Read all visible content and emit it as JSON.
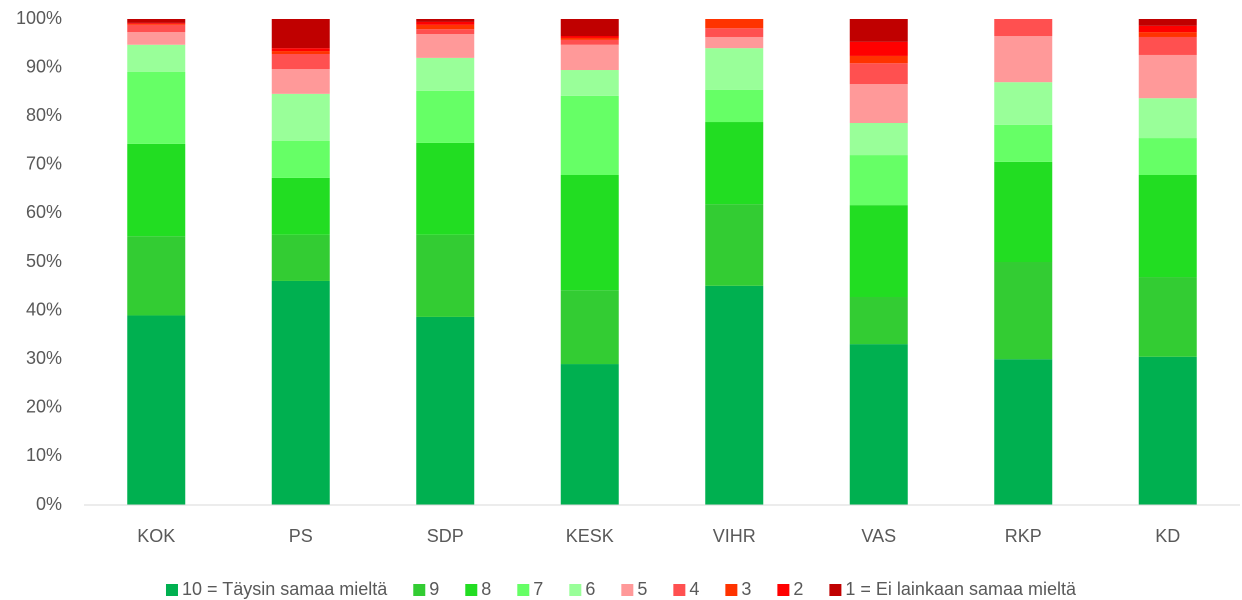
{
  "chart_data": {
    "type": "stacked_bar_100",
    "categories": [
      "KOK",
      "PS",
      "SDP",
      "KESK",
      "VIHR",
      "VAS",
      "RKP",
      "KD"
    ],
    "series": [
      {
        "name": "10 = Täysin samaa mieltä",
        "color": "#00b050",
        "values": [
          39.0,
          46.1,
          38.7,
          29.0,
          45.1,
          33.1,
          30.0,
          30.5
        ]
      },
      {
        "name": "9",
        "color": "#33cc33",
        "values": [
          16.3,
          9.5,
          16.9,
          15.2,
          16.8,
          9.7,
          20.0,
          16.4
        ]
      },
      {
        "name": "8",
        "color": "#22dd22",
        "values": [
          19.0,
          11.7,
          18.9,
          23.7,
          16.9,
          18.9,
          20.6,
          21.0
        ]
      },
      {
        "name": "7",
        "color": "#66ff66",
        "values": [
          14.8,
          7.6,
          10.7,
          16.3,
          6.6,
          10.3,
          7.6,
          7.6
        ]
      },
      {
        "name": "6",
        "color": "#99ff99",
        "values": [
          5.6,
          9.7,
          6.8,
          5.3,
          8.6,
          6.6,
          8.8,
          8.2
        ]
      },
      {
        "name": "5",
        "color": "#ff9999",
        "values": [
          2.6,
          5.1,
          4.9,
          5.2,
          2.3,
          8.0,
          9.5,
          8.9
        ]
      },
      {
        "name": "4",
        "color": "#ff5050",
        "values": [
          1.5,
          3.1,
          1.0,
          1.0,
          1.8,
          4.3,
          3.5,
          3.7
        ]
      },
      {
        "name": "3",
        "color": "#ff3300",
        "values": [
          0.2,
          0.6,
          0.9,
          0.4,
          1.9,
          1.5,
          0,
          1.0
        ]
      },
      {
        "name": "2",
        "color": "#ff0000",
        "values": [
          0.2,
          0.6,
          0.6,
          0.4,
          0,
          2.9,
          0,
          1.3
        ]
      },
      {
        "name": "1 = Ei lainkaan samaa mieltä",
        "color": "#c00000",
        "values": [
          0.8,
          6.0,
          0.6,
          3.5,
          0,
          4.7,
          0,
          1.4
        ]
      }
    ],
    "ylim": [
      0,
      100
    ],
    "yticks": [
      {
        "value": 0,
        "label": "0%"
      },
      {
        "value": 10,
        "label": "10%"
      },
      {
        "value": 20,
        "label": "20%"
      },
      {
        "value": 30,
        "label": "30%"
      },
      {
        "value": 40,
        "label": "40%"
      },
      {
        "value": 50,
        "label": "50%"
      },
      {
        "value": 60,
        "label": "60%"
      },
      {
        "value": 70,
        "label": "70%"
      },
      {
        "value": 80,
        "label": "80%"
      },
      {
        "value": 90,
        "label": "90%"
      },
      {
        "value": 100,
        "label": "100%"
      }
    ],
    "grid": false,
    "legend": "bottom"
  }
}
